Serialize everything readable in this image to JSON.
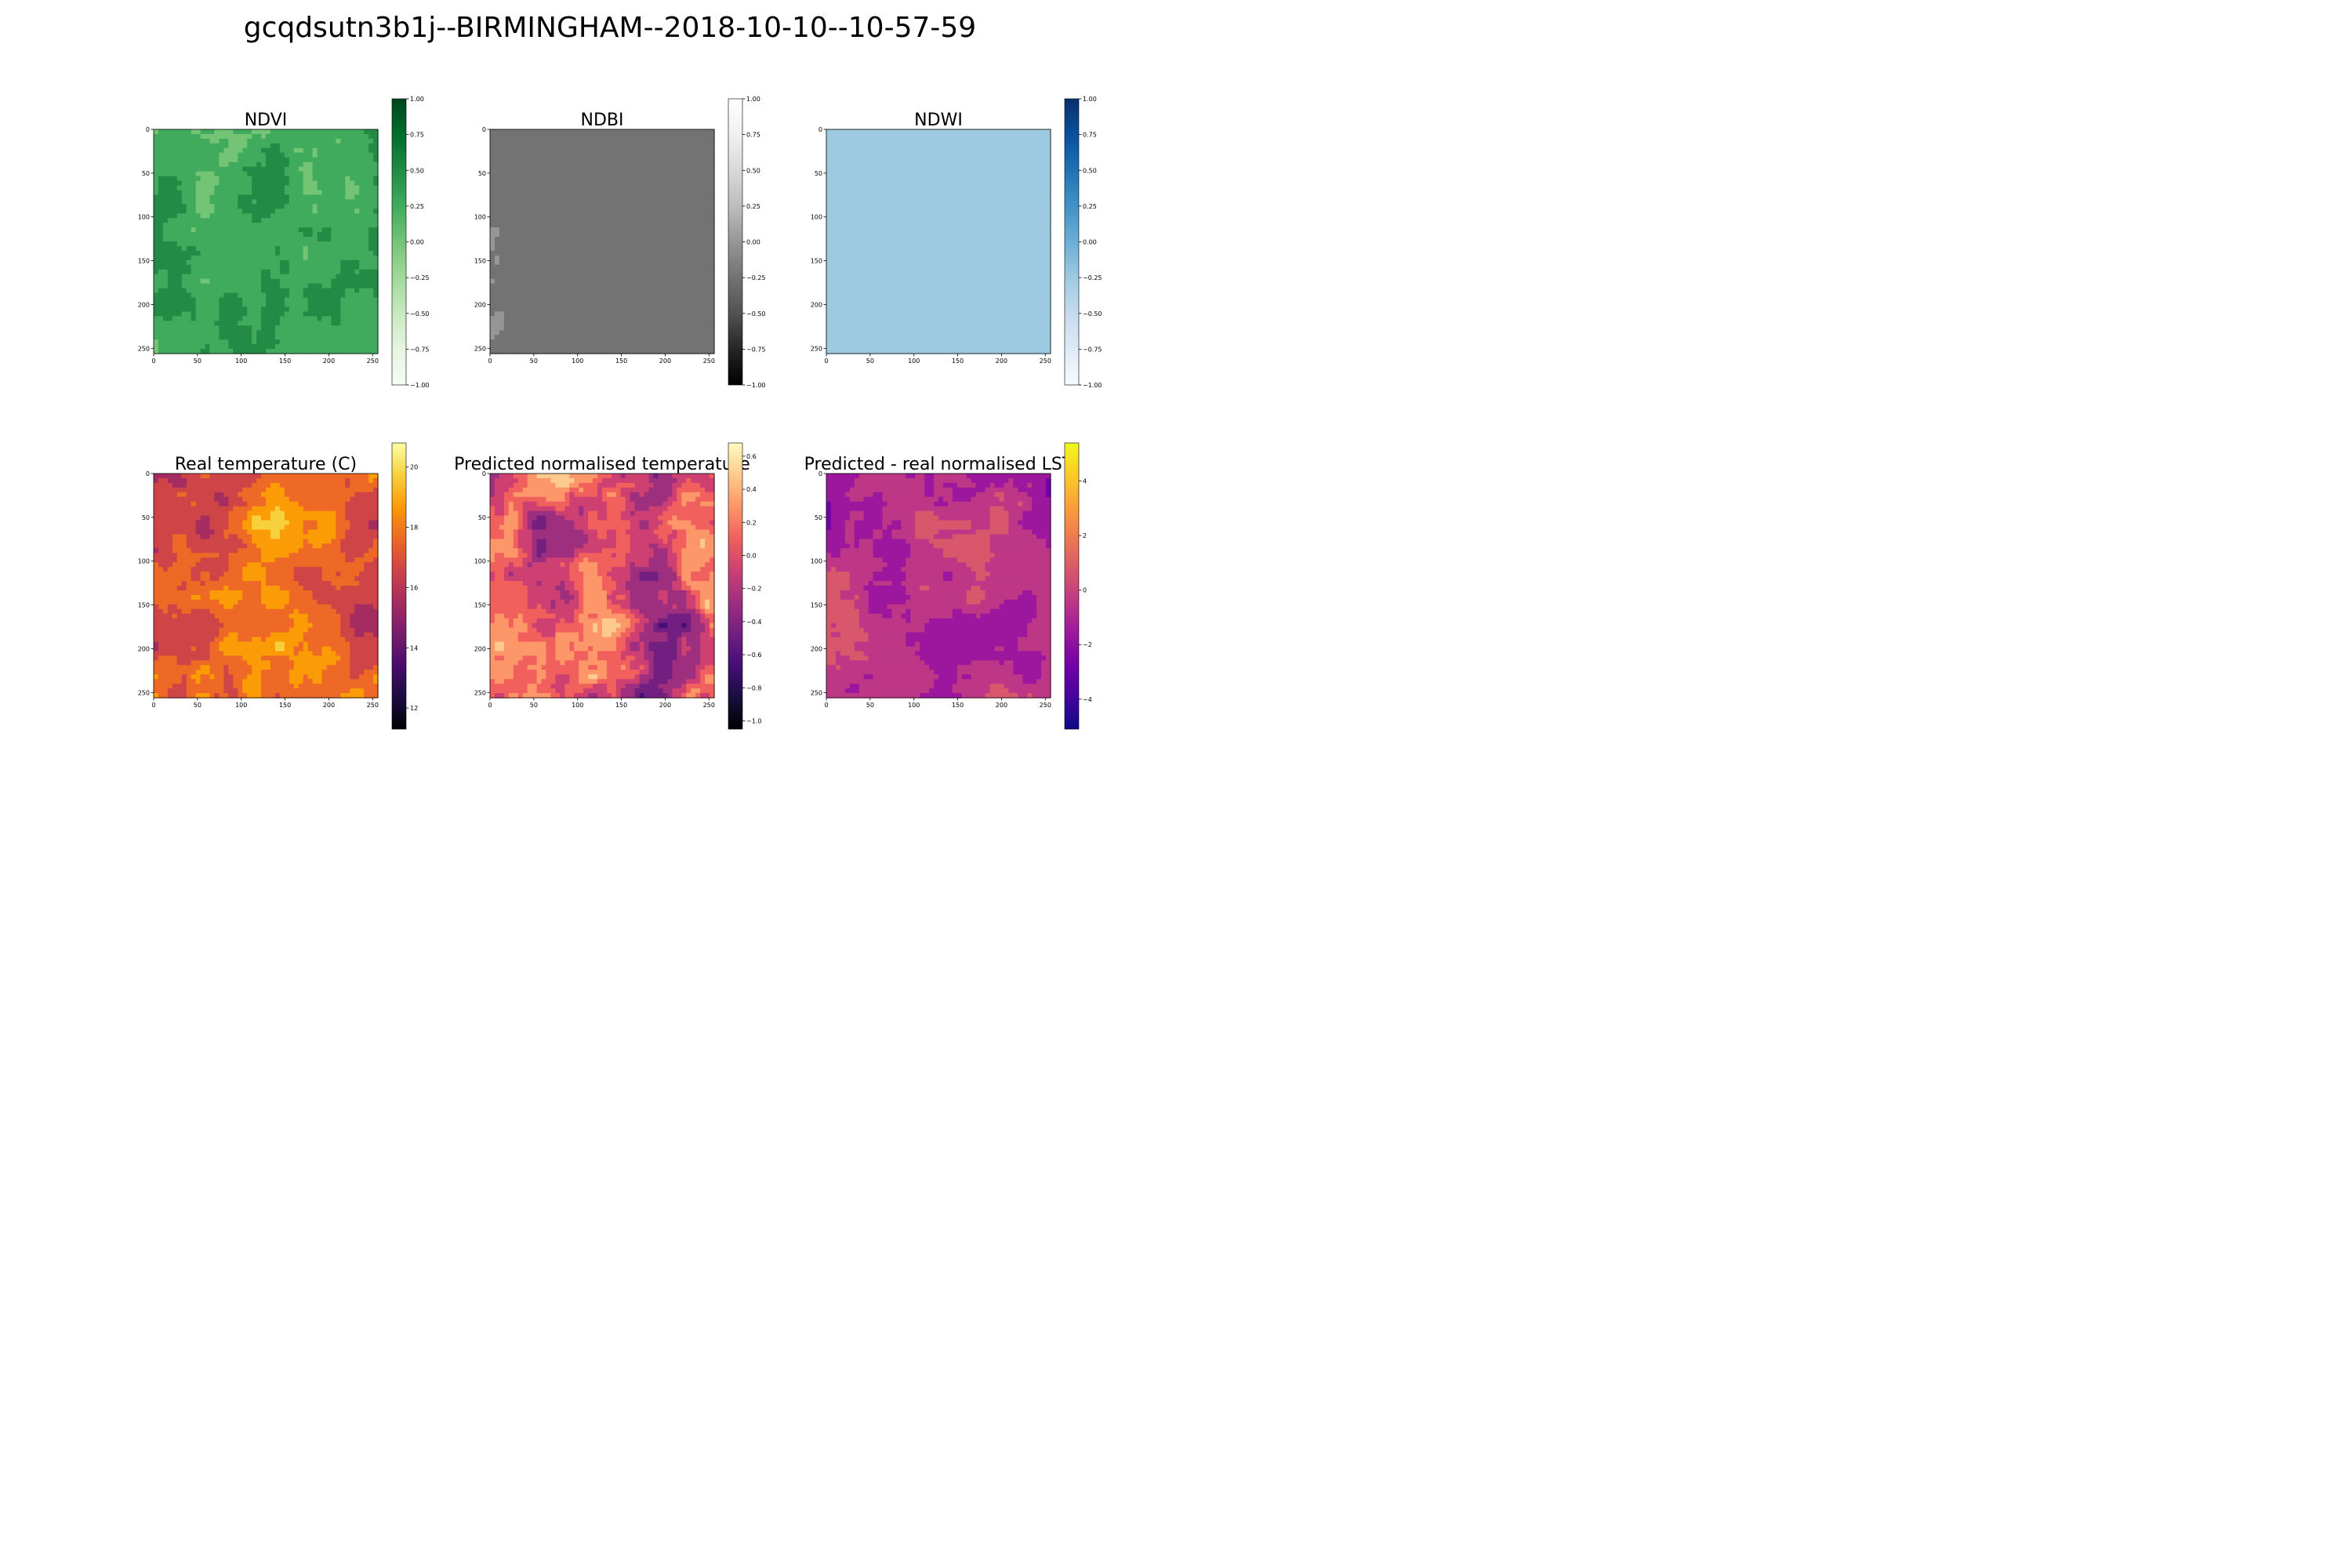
{
  "figure": {
    "title": "gcqdsutn3b1j--BIRMINGHAM--2018-10-10--10-57-59"
  },
  "chart_data": [
    {
      "type": "heatmap",
      "title": "NDVI",
      "colormap": "Greens",
      "x_ticks": [
        "0",
        "50",
        "100",
        "150",
        "200",
        "250"
      ],
      "y_ticks": [
        "0",
        "50",
        "100",
        "150",
        "200",
        "250"
      ],
      "xlim": [
        0,
        256
      ],
      "ylim": [
        256,
        0
      ],
      "colorbar": {
        "range": [
          -1.0,
          1.0
        ],
        "ticks": [
          -1.0,
          -0.75,
          -0.5,
          -0.25,
          0.0,
          0.25,
          0.5,
          0.75,
          1.0
        ],
        "tick_labels": [
          "−1.00",
          "−0.75",
          "−0.50",
          "−0.25",
          "0.00",
          "0.25",
          "0.50",
          "0.75",
          "1.00"
        ]
      },
      "colors": [
        "#f7fcf5",
        "#e5f5e0",
        "#c7e9c0",
        "#a1d99b",
        "#74c476",
        "#41ab5d",
        "#238b45",
        "#006d2c",
        "#00441b"
      ],
      "value_range": [
        -0.35,
        0.95
      ],
      "base_value": 0.35,
      "texture": 0.55
    },
    {
      "type": "heatmap",
      "title": "NDBI",
      "colormap": "Greys_r",
      "x_ticks": [
        "0",
        "50",
        "100",
        "150",
        "200",
        "250"
      ],
      "y_ticks": [
        "0",
        "50",
        "100",
        "150",
        "200",
        "250"
      ],
      "xlim": [
        0,
        256
      ],
      "ylim": [
        256,
        0
      ],
      "colorbar": {
        "range": [
          -1.0,
          1.0
        ],
        "ticks": [
          -1.0,
          -0.75,
          -0.5,
          -0.25,
          0.0,
          0.25,
          0.5,
          0.75,
          1.0
        ],
        "tick_labels": [
          "−1.00",
          "−0.75",
          "−0.50",
          "−0.25",
          "0.00",
          "0.25",
          "0.50",
          "0.75",
          "1.00"
        ]
      },
      "colors": [
        "#000000",
        "#252525",
        "#525252",
        "#737373",
        "#969696",
        "#bdbdbd",
        "#d9d9d9",
        "#f0f0f0",
        "#ffffff"
      ],
      "value_range": [
        -0.35,
        0.0
      ],
      "base_value": -0.18,
      "texture": 0.18
    },
    {
      "type": "heatmap",
      "title": "NDWI",
      "colormap": "Blues",
      "x_ticks": [
        "0",
        "50",
        "100",
        "150",
        "200",
        "250"
      ],
      "y_ticks": [
        "0",
        "50",
        "100",
        "150",
        "200",
        "250"
      ],
      "xlim": [
        0,
        256
      ],
      "ylim": [
        256,
        0
      ],
      "colorbar": {
        "range": [
          -1.0,
          1.0
        ],
        "ticks": [
          -1.0,
          -0.75,
          -0.5,
          -0.25,
          0.0,
          0.25,
          0.5,
          0.75,
          1.0
        ],
        "tick_labels": [
          "−1.00",
          "−0.75",
          "−0.50",
          "−0.25",
          "0.00",
          "0.25",
          "0.50",
          "0.75",
          "1.00"
        ]
      },
      "colors": [
        "#f7fbff",
        "#deebf7",
        "#c6dbef",
        "#9ecae1",
        "#6baed6",
        "#4292c6",
        "#2171b5",
        "#08519c",
        "#08306b"
      ],
      "value_range": [
        -0.5,
        -0.05
      ],
      "base_value": -0.25,
      "texture": 0.22
    },
    {
      "type": "heatmap",
      "title": "Real temperature (C)",
      "colormap": "inferno",
      "x_ticks": [
        "0",
        "50",
        "100",
        "150",
        "200",
        "250"
      ],
      "y_ticks": [
        "0",
        "50",
        "100",
        "150",
        "200",
        "250"
      ],
      "xlim": [
        0,
        256
      ],
      "ylim": [
        256,
        0
      ],
      "colorbar": {
        "range": [
          11.3,
          20.8
        ],
        "ticks": [
          12,
          14,
          16,
          18,
          20
        ],
        "tick_labels": [
          "12",
          "14",
          "16",
          "18",
          "20"
        ]
      },
      "colors": [
        "#000004",
        "#1b0c41",
        "#4a0c6b",
        "#781c6d",
        "#a52c60",
        "#cf4446",
        "#ed6925",
        "#fb9b06",
        "#f7d13d",
        "#fcffa4"
      ],
      "value_range": [
        11.5,
        20.2
      ],
      "base_value": 17.2,
      "texture": 0.35
    },
    {
      "type": "heatmap",
      "title": "Predicted normalised temperature",
      "colormap": "magma",
      "x_ticks": [
        "0",
        "50",
        "100",
        "150",
        "200",
        "250"
      ],
      "y_ticks": [
        "0",
        "50",
        "100",
        "150",
        "200",
        "250"
      ],
      "xlim": [
        0,
        256
      ],
      "ylim": [
        256,
        0
      ],
      "colorbar": {
        "range": [
          -1.05,
          0.68
        ],
        "ticks": [
          -1.0,
          -0.8,
          -0.6,
          -0.4,
          -0.2,
          0.0,
          0.2,
          0.4,
          0.6
        ],
        "tick_labels": [
          "−1.0",
          "−0.8",
          "−0.6",
          "−0.4",
          "−0.2",
          "0.0",
          "0.2",
          "0.4",
          "0.6"
        ]
      },
      "colors": [
        "#000004",
        "#180f3d",
        "#440f76",
        "#721f81",
        "#9e2f7f",
        "#cd4071",
        "#f1605d",
        "#fd9668",
        "#feca8d",
        "#fcfdbf"
      ],
      "value_range": [
        -1.0,
        0.65
      ],
      "base_value": 0.05,
      "texture": 0.85
    },
    {
      "type": "heatmap",
      "title": "Predicted - real normalised LST",
      "colormap": "plasma",
      "x_ticks": [
        "0",
        "50",
        "100",
        "150",
        "200",
        "250"
      ],
      "y_ticks": [
        "0",
        "50",
        "100",
        "150",
        "200",
        "250"
      ],
      "xlim": [
        0,
        256
      ],
      "ylim": [
        256,
        0
      ],
      "colorbar": {
        "range": [
          -5.1,
          5.4
        ],
        "ticks": [
          -4,
          -2,
          0,
          2,
          4
        ],
        "tick_labels": [
          "−4",
          "−2",
          "0",
          "2",
          "4"
        ]
      },
      "colors": [
        "#0d0887",
        "#46039f",
        "#7201a8",
        "#9c179e",
        "#bd3786",
        "#d8576b",
        "#ed7953",
        "#fb9f3a",
        "#fdca26",
        "#f0f921"
      ],
      "value_range": [
        -3.5,
        4.5
      ],
      "base_value": -0.5,
      "texture": 0.3
    }
  ]
}
